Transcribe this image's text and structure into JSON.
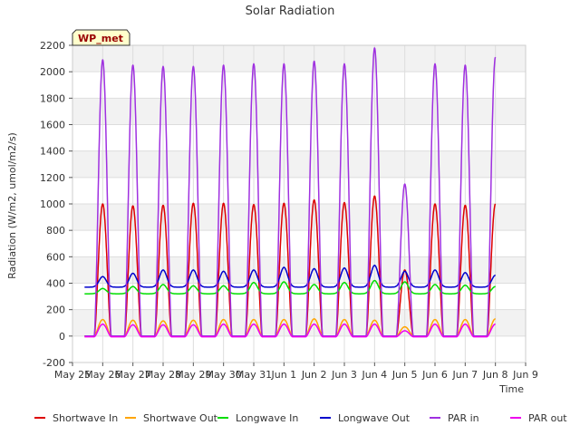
{
  "chart_data": {
    "type": "line",
    "title": "Solar Radiation",
    "xlabel": "Time",
    "ylabel": "Radiation (W/m2, umol/m2/s)",
    "annotation": "WP_met",
    "ylim": [
      -200,
      2200
    ],
    "yticks": [
      -200,
      0,
      200,
      400,
      600,
      800,
      1000,
      1200,
      1400,
      1600,
      1800,
      2000,
      2200
    ],
    "xlim": [
      0,
      15
    ],
    "xticks": [
      {
        "value": 0,
        "label": "May 25"
      },
      {
        "value": 1,
        "label": "May 26"
      },
      {
        "value": 2,
        "label": "May 27"
      },
      {
        "value": 3,
        "label": "May 28"
      },
      {
        "value": 4,
        "label": "May 29"
      },
      {
        "value": 5,
        "label": "May 30"
      },
      {
        "value": 6,
        "label": "May 31"
      },
      {
        "value": 7,
        "label": "Jun 1"
      },
      {
        "value": 8,
        "label": "Jun 2"
      },
      {
        "value": 9,
        "label": "Jun 3"
      },
      {
        "value": 10,
        "label": "Jun 4"
      },
      {
        "value": 11,
        "label": "Jun 5"
      },
      {
        "value": 12,
        "label": "Jun 6"
      },
      {
        "value": 13,
        "label": "Jun 7"
      },
      {
        "value": 14,
        "label": "Jun 8"
      },
      {
        "value": 15,
        "label": "Jun 9"
      }
    ],
    "grid": true,
    "legend_position": "bottom",
    "x_start": 0.4,
    "x_end": 14.0,
    "days": [
      {
        "day": 1,
        "sw_in": 1000,
        "sw_out": 125,
        "lw_in": 360,
        "lw_out": 450,
        "par_in": 2090,
        "par_out": 90
      },
      {
        "day": 2,
        "sw_in": 985,
        "sw_out": 120,
        "lw_in": 375,
        "lw_out": 475,
        "par_in": 2050,
        "par_out": 85
      },
      {
        "day": 3,
        "sw_in": 990,
        "sw_out": 115,
        "lw_in": 390,
        "lw_out": 500,
        "par_in": 2040,
        "par_out": 85
      },
      {
        "day": 4,
        "sw_in": 1005,
        "sw_out": 120,
        "lw_in": 380,
        "lw_out": 500,
        "par_in": 2040,
        "par_out": 85
      },
      {
        "day": 5,
        "sw_in": 1005,
        "sw_out": 125,
        "lw_in": 380,
        "lw_out": 490,
        "par_in": 2050,
        "par_out": 90
      },
      {
        "day": 6,
        "sw_in": 995,
        "sw_out": 125,
        "lw_in": 405,
        "lw_out": 500,
        "par_in": 2060,
        "par_out": 90
      },
      {
        "day": 7,
        "sw_in": 1005,
        "sw_out": 125,
        "lw_in": 410,
        "lw_out": 520,
        "par_in": 2060,
        "par_out": 90
      },
      {
        "day": 8,
        "sw_in": 1030,
        "sw_out": 130,
        "lw_in": 390,
        "lw_out": 510,
        "par_in": 2080,
        "par_out": 90
      },
      {
        "day": 9,
        "sw_in": 1010,
        "sw_out": 125,
        "lw_in": 405,
        "lw_out": 515,
        "par_in": 2060,
        "par_out": 90
      },
      {
        "day": 10,
        "sw_in": 1060,
        "sw_out": 120,
        "lw_in": 420,
        "lw_out": 535,
        "par_in": 2180,
        "par_out": 90
      },
      {
        "day": 11,
        "sw_in": 500,
        "sw_out": 70,
        "lw_in": 410,
        "lw_out": 490,
        "par_in": 1150,
        "par_out": 40
      },
      {
        "day": 12,
        "sw_in": 1000,
        "sw_out": 125,
        "lw_in": 390,
        "lw_out": 500,
        "par_in": 2060,
        "par_out": 90
      },
      {
        "day": 13,
        "sw_in": 990,
        "sw_out": 125,
        "lw_in": 385,
        "lw_out": 480,
        "par_in": 2050,
        "par_out": 90
      },
      {
        "day": 14,
        "sw_in": 1000,
        "sw_out": 130,
        "lw_in": 375,
        "lw_out": 460,
        "par_in": 2110,
        "par_out": 90
      }
    ],
    "series": [
      {
        "key": "sw_in",
        "name": "Shortwave In",
        "color": "#dd0000",
        "night": 0
      },
      {
        "key": "sw_out",
        "name": "Shortwave Out",
        "color": "#ffa500",
        "night": 0
      },
      {
        "key": "lw_in",
        "name": "Longwave In",
        "color": "#00dd00",
        "night": 320
      },
      {
        "key": "lw_out",
        "name": "Longwave Out",
        "color": "#0000cc",
        "night": 370
      },
      {
        "key": "par_in",
        "name": "PAR in",
        "color": "#9f30e0",
        "night": 0
      },
      {
        "key": "par_out",
        "name": "PAR out",
        "color": "#ee00ee",
        "night": -5
      }
    ]
  }
}
